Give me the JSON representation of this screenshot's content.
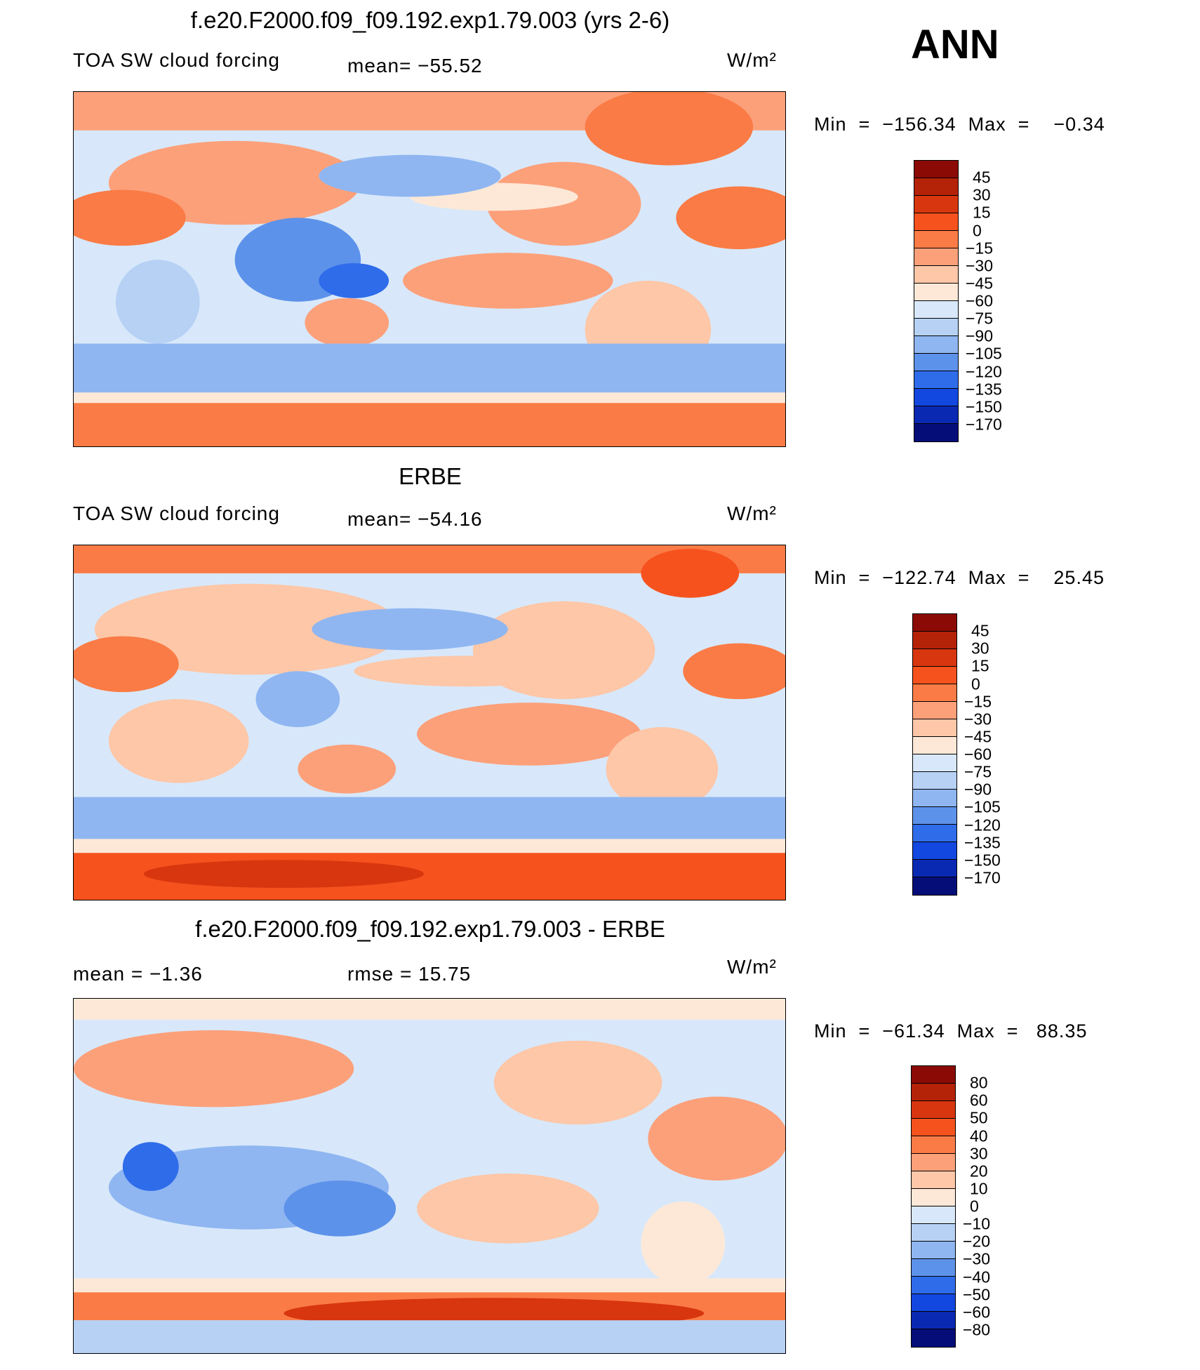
{
  "season": "ANN",
  "units": "W/m²",
  "panels": [
    {
      "title": "f.e20.F2000.f09_f09.192.exp1.79.003 (yrs 2-6)",
      "variable": "TOA SW cloud forcing",
      "stat": "mean=  −55.52",
      "minmax": "Min  =  −156.34  Max  =    −0.34",
      "levels": [
        "45",
        "30",
        "15",
        "0",
        "−15",
        "−30",
        "−45",
        "−60",
        "−75",
        "−90",
        "−105",
        "−120",
        "−135",
        "−150",
        "−170"
      ],
      "colors": [
        "#8b0a05",
        "#b42208",
        "#d8360f",
        "#f6521e",
        "#fa7b45",
        "#fca07a",
        "#fdc7a8",
        "#fde8d7",
        "#d8e8fa",
        "#b7d1f5",
        "#8fb6f1",
        "#5d92ea",
        "#2f6cea",
        "#1248e0",
        "#0a29b3",
        "#050d78"
      ]
    },
    {
      "title": "ERBE",
      "variable": "TOA SW cloud forcing",
      "stat": "mean=  −54.16",
      "minmax": "Min  =  −122.74  Max  =    25.45",
      "levels": [
        "45",
        "30",
        "15",
        "0",
        "−15",
        "−30",
        "−45",
        "−60",
        "−75",
        "−90",
        "−105",
        "−120",
        "−135",
        "−150",
        "−170"
      ],
      "colors": [
        "#8b0a05",
        "#b42208",
        "#d8360f",
        "#f6521e",
        "#fa7b45",
        "#fca07a",
        "#fdc7a8",
        "#fde8d7",
        "#d8e8fa",
        "#b7d1f5",
        "#8fb6f1",
        "#5d92ea",
        "#2f6cea",
        "#1248e0",
        "#0a29b3",
        "#050d78"
      ]
    },
    {
      "title": "f.e20.F2000.f09_f09.192.exp1.79.003 - ERBE",
      "variable": "mean  =    −1.36",
      "stat": "rmse  =    15.75",
      "minmax": "Min  =  −61.34  Max  =   88.35",
      "levels": [
        "80",
        "60",
        "50",
        "40",
        "30",
        "20",
        "10",
        "0",
        "−10",
        "−20",
        "−30",
        "−40",
        "−50",
        "−60",
        "−80"
      ],
      "colors": [
        "#8b0a05",
        "#b42208",
        "#d8360f",
        "#f6521e",
        "#fa7b45",
        "#fca07a",
        "#fdc7a8",
        "#fde8d7",
        "#d8e8fa",
        "#b7d1f5",
        "#8fb6f1",
        "#5d92ea",
        "#2f6cea",
        "#1248e0",
        "#0a29b3",
        "#050d78"
      ]
    }
  ]
}
